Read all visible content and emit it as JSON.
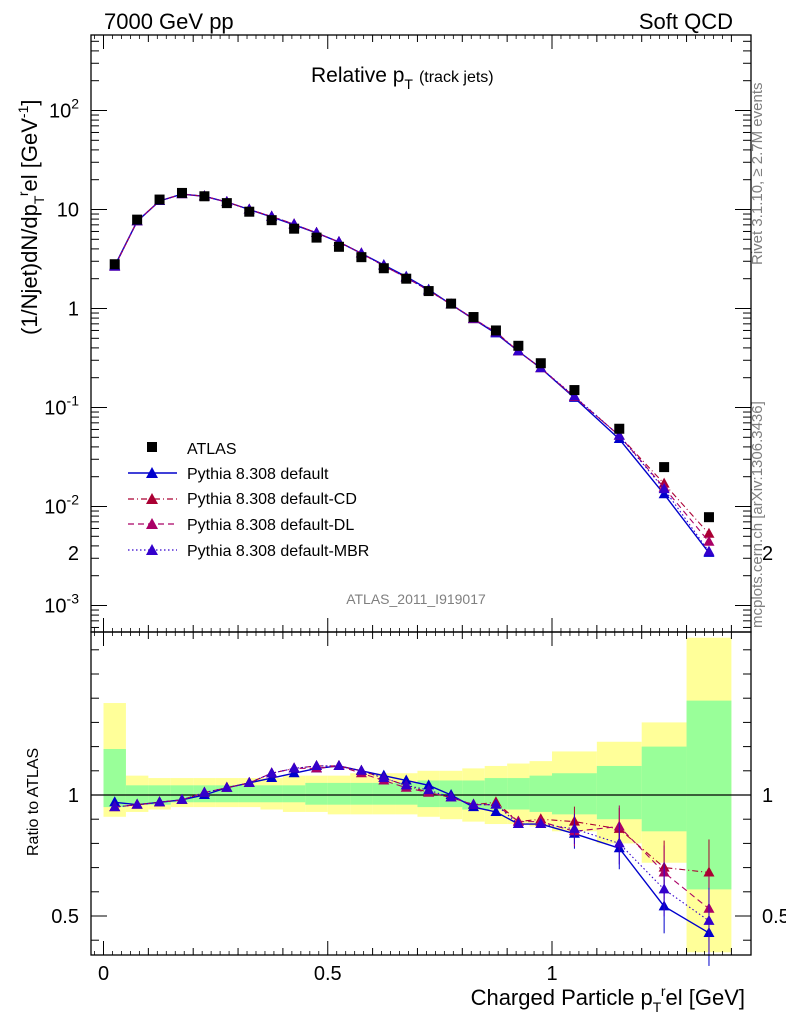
{
  "header": {
    "left": "7000 GeV pp",
    "right": "Soft QCD"
  },
  "side_labels": {
    "rivet": "Rivet 3.1.10, ≥ 2.7M events",
    "mcplots": "mcplots.cern.ch [arXiv:1306.3436]"
  },
  "chart_data": [
    {
      "type": "line",
      "title": "Relative p",
      "title_sub": "T",
      "title_suffix": "(track jets)",
      "ylabel": "(1/Njet)dN/dp",
      "ylabel_sub": "T",
      "ylabel_sup": "r",
      "ylabel_suffix": "el [GeV",
      "ylabel_unit_sup": "-1",
      "ylabel_close": "]",
      "yscale": "log",
      "ylim": [
        0.0005,
        600
      ],
      "xlim": [
        -0.03,
        1.4
      ],
      "watermark": "ATLAS_2011_I919017",
      "ytick_labels": [
        {
          "base": "10",
          "exp": "-3",
          "value": 0.001
        },
        {
          "base": "10",
          "exp": "-2",
          "value": 0.01
        },
        {
          "base": "10",
          "exp": "-1",
          "value": 0.1
        },
        {
          "base": "1",
          "exp": "",
          "value": 1
        },
        {
          "base": "10",
          "exp": "",
          "value": 10
        },
        {
          "base": "10",
          "exp": "2",
          "value": 100
        }
      ],
      "x": [
        0.025,
        0.075,
        0.125,
        0.175,
        0.225,
        0.275,
        0.325,
        0.375,
        0.425,
        0.475,
        0.525,
        0.575,
        0.625,
        0.675,
        0.725,
        0.775,
        0.825,
        0.875,
        0.925,
        0.975,
        1.05,
        1.15,
        1.25,
        1.35
      ],
      "atlas": [
        2.8,
        7.9,
        12.6,
        14.7,
        13.6,
        11.6,
        9.5,
        7.8,
        6.4,
        5.2,
        4.2,
        3.3,
        2.55,
        2.0,
        1.5,
        1.12,
        0.82,
        0.6,
        0.42,
        0.28,
        0.15,
        0.061,
        0.025,
        0.0078
      ],
      "series": [
        {
          "name": "Pythia 8.308 default",
          "color": "#0000cc",
          "dash": "solid",
          "values": [
            2.7,
            7.6,
            12.2,
            14.3,
            13.6,
            11.9,
            10.0,
            8.4,
            7.0,
            5.8,
            4.7,
            3.6,
            2.75,
            2.1,
            1.55,
            1.1,
            0.78,
            0.56,
            0.37,
            0.25,
            0.125,
            0.048,
            0.0133,
            0.0034
          ]
        },
        {
          "name": "Pythia 8.308 default-CD",
          "color": "#aa0033",
          "dash": "dashdot",
          "values": [
            2.65,
            7.6,
            12.2,
            14.3,
            13.6,
            11.9,
            10.0,
            8.5,
            7.1,
            5.8,
            4.7,
            3.6,
            2.7,
            2.05,
            1.52,
            1.1,
            0.78,
            0.58,
            0.37,
            0.25,
            0.128,
            0.052,
            0.017,
            0.0053
          ]
        },
        {
          "name": "Pythia 8.308 default-DL",
          "color": "#aa0066",
          "dash": "dash",
          "values": [
            2.65,
            7.6,
            12.2,
            14.3,
            13.6,
            11.9,
            10.0,
            8.5,
            7.1,
            5.8,
            4.7,
            3.6,
            2.7,
            2.05,
            1.52,
            1.1,
            0.79,
            0.57,
            0.37,
            0.25,
            0.128,
            0.052,
            0.0155,
            0.0044
          ]
        },
        {
          "name": "Pythia 8.308 default-MBR",
          "color": "#3300cc",
          "dash": "dot",
          "values": [
            2.65,
            7.6,
            12.2,
            14.3,
            13.6,
            11.9,
            10.0,
            8.5,
            7.1,
            5.8,
            4.7,
            3.6,
            2.7,
            2.05,
            1.52,
            1.1,
            0.79,
            0.57,
            0.37,
            0.25,
            0.13,
            0.052,
            0.015,
            0.0035
          ]
        }
      ],
      "legend": {
        "data_label": "ATLAS",
        "position": "bottom-left"
      }
    },
    {
      "type": "line",
      "ylabel": "Ratio to ATLAS",
      "xlabel": "Charged Particle p",
      "xlabel_sub": "T",
      "xlabel_sup": "r",
      "xlabel_suffix": "el [GeV]",
      "ylim": [
        0.35,
        2.25
      ],
      "xtick_labels": [
        "0",
        "0.5",
        "1"
      ],
      "ytick_labels": [
        "0.5",
        "1",
        "2"
      ],
      "reference_line": 1,
      "bin_edges": [
        0.0,
        0.05,
        0.1,
        0.15,
        0.2,
        0.25,
        0.3,
        0.35,
        0.4,
        0.45,
        0.5,
        0.55,
        0.6,
        0.65,
        0.7,
        0.75,
        0.8,
        0.85,
        0.9,
        0.95,
        1.0,
        1.1,
        1.2,
        1.3,
        1.4
      ],
      "band_yellow": [
        [
          0.91,
          1.38
        ],
        [
          0.93,
          1.08
        ],
        [
          0.94,
          1.07
        ],
        [
          0.95,
          1.07
        ],
        [
          0.95,
          1.07
        ],
        [
          0.95,
          1.07
        ],
        [
          0.95,
          1.07
        ],
        [
          0.94,
          1.07
        ],
        [
          0.93,
          1.08
        ],
        [
          0.93,
          1.08
        ],
        [
          0.92,
          1.08
        ],
        [
          0.92,
          1.09
        ],
        [
          0.92,
          1.09
        ],
        [
          0.92,
          1.09
        ],
        [
          0.91,
          1.1
        ],
        [
          0.9,
          1.1
        ],
        [
          0.89,
          1.11
        ],
        [
          0.88,
          1.12
        ],
        [
          0.88,
          1.13
        ],
        [
          0.87,
          1.14
        ],
        [
          0.85,
          1.18
        ],
        [
          0.8,
          1.22
        ],
        [
          0.72,
          1.3
        ],
        [
          0.35,
          1.65
        ]
      ],
      "band_green": [
        [
          0.95,
          1.19
        ],
        [
          0.96,
          1.04
        ],
        [
          0.96,
          1.04
        ],
        [
          0.97,
          1.04
        ],
        [
          0.97,
          1.04
        ],
        [
          0.97,
          1.04
        ],
        [
          0.97,
          1.04
        ],
        [
          0.97,
          1.04
        ],
        [
          0.97,
          1.04
        ],
        [
          0.96,
          1.05
        ],
        [
          0.96,
          1.05
        ],
        [
          0.96,
          1.05
        ],
        [
          0.96,
          1.05
        ],
        [
          0.96,
          1.05
        ],
        [
          0.95,
          1.06
        ],
        [
          0.95,
          1.06
        ],
        [
          0.94,
          1.06
        ],
        [
          0.94,
          1.07
        ],
        [
          0.94,
          1.07
        ],
        [
          0.93,
          1.08
        ],
        [
          0.92,
          1.09
        ],
        [
          0.9,
          1.12
        ],
        [
          0.85,
          1.2
        ],
        [
          0.61,
          1.39
        ]
      ],
      "series": [
        {
          "name": "Pythia 8.308 default",
          "color": "#0000cc",
          "dash": "solid",
          "values": [
            0.97,
            0.96,
            0.97,
            0.98,
            1.0,
            1.03,
            1.05,
            1.07,
            1.09,
            1.11,
            1.12,
            1.1,
            1.08,
            1.06,
            1.04,
            1.0,
            0.95,
            0.93,
            0.88,
            0.88,
            0.84,
            0.78,
            0.54,
            0.43
          ]
        },
        {
          "name": "Pythia 8.308 default-CD",
          "color": "#aa0033",
          "dash": "dashdot",
          "values": [
            0.95,
            0.96,
            0.97,
            0.98,
            1.01,
            1.03,
            1.05,
            1.09,
            1.11,
            1.12,
            1.12,
            1.1,
            1.07,
            1.04,
            1.01,
            0.99,
            0.96,
            0.97,
            0.89,
            0.9,
            0.89,
            0.86,
            0.7,
            0.68
          ]
        },
        {
          "name": "Pythia 8.308 default-DL",
          "color": "#aa0066",
          "dash": "dash",
          "values": [
            0.95,
            0.96,
            0.97,
            0.98,
            1.01,
            1.03,
            1.05,
            1.09,
            1.11,
            1.11,
            1.12,
            1.09,
            1.06,
            1.03,
            1.01,
            0.99,
            0.96,
            0.96,
            0.89,
            0.89,
            0.85,
            0.87,
            0.68,
            0.53
          ]
        },
        {
          "name": "Pythia 8.308 default-MBR",
          "color": "#3300cc",
          "dash": "dot",
          "values": [
            0.95,
            0.96,
            0.97,
            0.98,
            1.01,
            1.03,
            1.05,
            1.09,
            1.11,
            1.12,
            1.12,
            1.1,
            1.07,
            1.04,
            1.02,
            0.99,
            0.96,
            0.96,
            0.88,
            0.88,
            0.86,
            0.8,
            0.61,
            0.48
          ]
        }
      ]
    }
  ]
}
